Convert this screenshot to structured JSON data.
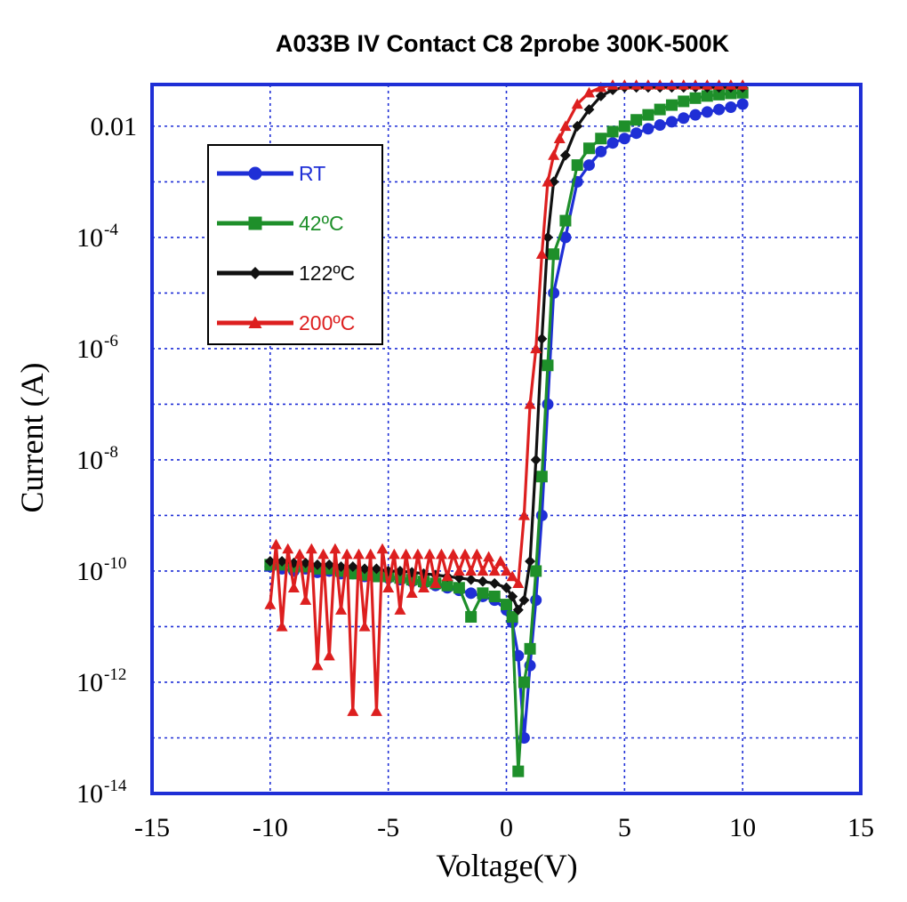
{
  "chart_data": {
    "type": "line",
    "title": "A033B IV Contact C8 2probe 300K-500K",
    "xlabel": "Voltage(V)",
    "ylabel": "Current (A)",
    "xlim": [
      -15,
      15
    ],
    "ylim_exp": [
      -14,
      -1.25
    ],
    "y_scale": "log",
    "grid": true,
    "legend_position": "top-left",
    "x_ticks": [
      -15,
      -10,
      -5,
      0,
      5,
      10,
      15
    ],
    "x_tick_labels": [
      "-15",
      "-10",
      "-5",
      "0",
      "5",
      "10",
      "15"
    ],
    "y_ticks": [
      {
        "exp": -14,
        "base": "10",
        "sup": "-14"
      },
      {
        "exp": -12,
        "base": "10",
        "sup": "-12"
      },
      {
        "exp": -10,
        "base": "10",
        "sup": "-10"
      },
      {
        "exp": -8,
        "base": "10",
        "sup": "-8"
      },
      {
        "exp": -6,
        "base": "10",
        "sup": "-6"
      },
      {
        "exp": -4,
        "base": "10",
        "sup": "-4"
      },
      {
        "exp": -2,
        "base": "0.01",
        "sup": ""
      }
    ],
    "series": [
      {
        "name": "RT",
        "color": "#1f2fd6",
        "marker": "circle",
        "x": [
          -10,
          -9.5,
          -9,
          -8.5,
          -8,
          -7.5,
          -7,
          -6.5,
          -6,
          -5.5,
          -5,
          -4.5,
          -4,
          -3.5,
          -3,
          -2.5,
          -2,
          -1.5,
          -1,
          -0.5,
          0,
          0.25,
          0.5,
          0.75,
          1,
          1.25,
          1.5,
          1.75,
          2,
          2.5,
          3,
          3.5,
          4,
          4.5,
          5,
          5.5,
          6,
          6.5,
          7,
          7.5,
          8,
          8.5,
          9,
          9.5,
          10
        ],
        "y": [
          1.2e-10,
          1.1e-10,
          1e-10,
          1.1e-10,
          9.5e-11,
          1e-10,
          9e-11,
          9e-11,
          8e-11,
          8e-11,
          7.5e-11,
          7e-11,
          6.5e-11,
          6e-11,
          5.5e-11,
          5e-11,
          4.5e-11,
          4e-11,
          3.5e-11,
          3e-11,
          2e-11,
          1.2e-11,
          3e-12,
          1e-13,
          2e-12,
          3e-11,
          1e-09,
          1e-07,
          1e-05,
          0.0001,
          0.001,
          0.002,
          0.0035,
          0.005,
          0.006,
          0.0075,
          0.009,
          0.0105,
          0.012,
          0.014,
          0.016,
          0.018,
          0.02,
          0.022,
          0.025
        ]
      },
      {
        "name": "42ºC",
        "color": "#1e8f2a",
        "marker": "square",
        "x": [
          -10,
          -9.5,
          -9,
          -8.5,
          -8,
          -7.5,
          -7,
          -6.5,
          -6,
          -5.5,
          -5,
          -4.5,
          -4,
          -3.5,
          -3,
          -2.5,
          -2,
          -1.5,
          -1,
          -0.5,
          0,
          0.25,
          0.5,
          0.75,
          1,
          1.25,
          1.5,
          1.75,
          2,
          2.5,
          3,
          3.5,
          4,
          4.5,
          5,
          5.5,
          6,
          6.5,
          7,
          7.5,
          8,
          8.5,
          9,
          9.5,
          10
        ],
        "y": [
          1.3e-10,
          1.3e-10,
          1.2e-10,
          1.2e-10,
          1.1e-10,
          1.1e-10,
          1e-10,
          9e-11,
          8.5e-11,
          8e-11,
          8e-11,
          7.5e-11,
          7e-11,
          6.5e-11,
          6e-11,
          5.5e-11,
          5e-11,
          1.5e-11,
          4e-11,
          3.5e-11,
          2.5e-11,
          1.5e-11,
          2.5e-14,
          1e-12,
          4e-12,
          1e-10,
          5e-09,
          5e-07,
          5e-05,
          0.0002,
          0.002,
          0.004,
          0.006,
          0.008,
          0.01,
          0.013,
          0.016,
          0.02,
          0.024,
          0.028,
          0.032,
          0.035,
          0.037,
          0.039,
          0.04
        ]
      },
      {
        "name": "122ºC",
        "color": "#111111",
        "marker": "diamond",
        "x": [
          -10,
          -9.5,
          -9,
          -8.5,
          -8,
          -7.5,
          -7,
          -6.5,
          -6,
          -5.5,
          -5,
          -4.5,
          -4,
          -3.5,
          -3,
          -2.5,
          -2,
          -1.5,
          -1,
          -0.5,
          0,
          0.25,
          0.5,
          0.75,
          1,
          1.25,
          1.5,
          1.75,
          2,
          2.5,
          3,
          3.5,
          4,
          4.5,
          5,
          5.5,
          6,
          6.5,
          7,
          7.5,
          8,
          8.5,
          9,
          9.5,
          10
        ],
        "y": [
          1.5e-10,
          1.5e-10,
          1.4e-10,
          1.4e-10,
          1.3e-10,
          1.3e-10,
          1.2e-10,
          1.2e-10,
          1.1e-10,
          1.1e-10,
          1e-10,
          1e-10,
          9.5e-11,
          9e-11,
          8.5e-11,
          8e-11,
          7.5e-11,
          7e-11,
          6.5e-11,
          6e-11,
          5e-11,
          3.5e-11,
          2e-11,
          3e-11,
          1.5e-10,
          1e-08,
          1.5e-06,
          0.0001,
          0.001,
          0.003,
          0.01,
          0.02,
          0.035,
          0.045,
          0.05,
          0.05,
          0.05,
          0.05,
          0.05,
          0.05,
          0.05,
          0.05,
          0.05,
          0.05,
          0.05
        ]
      },
      {
        "name": "200ºC",
        "color": "#dd1f1f",
        "marker": "triangle",
        "x": [
          -10,
          -9.75,
          -9.5,
          -9.25,
          -9,
          -8.75,
          -8.5,
          -8.25,
          -8,
          -7.75,
          -7.5,
          -7.25,
          -7,
          -6.75,
          -6.5,
          -6.25,
          -6,
          -5.75,
          -5.5,
          -5.25,
          -5,
          -4.75,
          -4.5,
          -4.25,
          -4,
          -3.75,
          -3.5,
          -3.25,
          -3,
          -2.75,
          -2.5,
          -2.25,
          -2,
          -1.75,
          -1.5,
          -1.25,
          -1,
          -0.75,
          -0.5,
          -0.25,
          0,
          0.25,
          0.5,
          0.75,
          1,
          1.25,
          1.5,
          1.75,
          2,
          2.25,
          2.5,
          3,
          3.5,
          4,
          4.5,
          5,
          5.5,
          6,
          6.5,
          7,
          7.5,
          8,
          8.5,
          9,
          9.5,
          10
        ],
        "y": [
          2.5e-11,
          3e-10,
          1e-11,
          2.5e-10,
          5e-11,
          2e-10,
          3e-11,
          2.5e-10,
          2e-12,
          2e-10,
          3e-12,
          2.5e-10,
          2e-11,
          2e-10,
          3e-13,
          2e-10,
          1e-11,
          2e-10,
          3e-13,
          2.5e-10,
          5e-11,
          2e-10,
          2e-11,
          2e-10,
          4e-11,
          2e-10,
          5e-11,
          2e-10,
          6e-11,
          2e-10,
          8e-11,
          2e-10,
          1e-10,
          2e-10,
          1e-10,
          2e-10,
          1e-10,
          1.8e-10,
          1e-10,
          1.5e-10,
          1e-10,
          8e-11,
          6e-11,
          1e-09,
          1e-07,
          1e-06,
          5e-05,
          0.001,
          0.003,
          0.006,
          0.01,
          0.025,
          0.04,
          0.05,
          0.055,
          0.055,
          0.055,
          0.055,
          0.055,
          0.055,
          0.055,
          0.055,
          0.055,
          0.055,
          0.055,
          0.055
        ]
      }
    ]
  }
}
